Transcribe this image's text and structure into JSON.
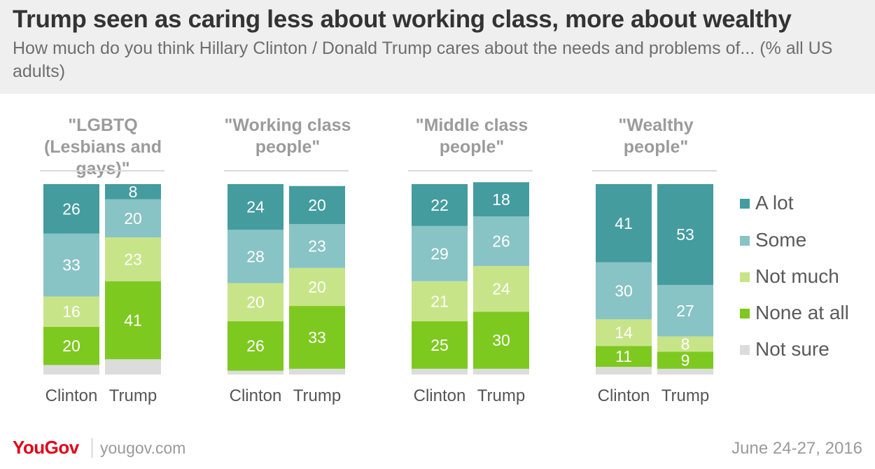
{
  "title": "Trump seen as caring less about working class, more about wealthy",
  "subtitle": "How much do you think Hillary Clinton / Donald Trump cares about the needs and problems of... (% all US adults)",
  "footer": {
    "logo": "YouGov",
    "site": "yougov.com",
    "date": "June 24-27, 2016"
  },
  "legend": [
    {
      "label": "A lot",
      "color": "#449c9f"
    },
    {
      "label": "Some",
      "color": "#88c3c5"
    },
    {
      "label": "Not much",
      "color": "#c8e488"
    },
    {
      "label": "None at all",
      "color": "#7ec920"
    },
    {
      "label": "Not sure",
      "color": "#dcdcdc"
    }
  ],
  "chart_data": {
    "type": "bar",
    "stacked": true,
    "categories": [
      "Clinton",
      "Trump"
    ],
    "series_names": [
      "A lot",
      "Some",
      "Not much",
      "None at all",
      "Not sure"
    ],
    "groups": [
      {
        "title": "\"LGBTQ (Lesbians and gays)\"",
        "bars": [
          {
            "label": "Clinton",
            "values": [
              26,
              33,
              16,
              20,
              5
            ]
          },
          {
            "label": "Trump",
            "values": [
              8,
              20,
              23,
              41,
              8
            ]
          }
        ]
      },
      {
        "title": "\"Working class people\"",
        "bars": [
          {
            "label": "Clinton",
            "values": [
              24,
              28,
              20,
              26,
              2
            ]
          },
          {
            "label": "Trump",
            "values": [
              20,
              23,
              20,
              33,
              3
            ]
          }
        ]
      },
      {
        "title": "\"Middle class people\"",
        "bars": [
          {
            "label": "Clinton",
            "values": [
              22,
              29,
              21,
              25,
              3
            ]
          },
          {
            "label": "Trump",
            "values": [
              18,
              26,
              24,
              30,
              3
            ]
          }
        ]
      },
      {
        "title": "\"Wealthy people\"",
        "bars": [
          {
            "label": "Clinton",
            "values": [
              41,
              30,
              14,
              11,
              4
            ]
          },
          {
            "label": "Trump",
            "values": [
              53,
              27,
              8,
              9,
              3
            ]
          }
        ]
      }
    ]
  }
}
